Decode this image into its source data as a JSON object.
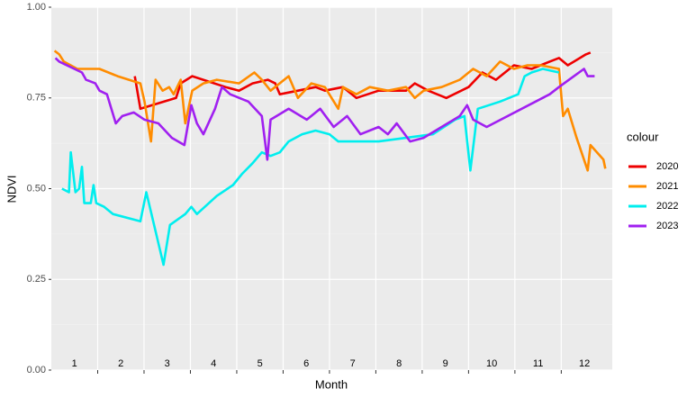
{
  "chart_data": {
    "type": "line",
    "x_label": "Month",
    "y_label": "NDVI",
    "legend_title": "colour",
    "legend_position": "right",
    "grid": true,
    "xlim": [
      0.5,
      12.6
    ],
    "xticks": [
      1,
      2,
      3,
      4,
      5,
      6,
      7,
      8,
      9,
      10,
      11,
      12
    ],
    "ylim": [
      0,
      1
    ],
    "yticks": [
      {
        "value": 0,
        "label": "0.00"
      },
      {
        "value": 0.25,
        "label": "0.25"
      },
      {
        "value": 0.5,
        "label": "0.50"
      },
      {
        "value": 0.75,
        "label": "0.75"
      },
      {
        "value": 1,
        "label": "1.00"
      }
    ],
    "series": [
      {
        "name": "2020",
        "color": "#ee0000",
        "x": [
          2.3,
          2.42,
          3.19,
          3.29,
          3.54,
          4.26,
          4.55,
          4.84,
          5.17,
          5.33,
          5.43,
          5.82,
          6.2,
          6.4,
          6.79,
          7.08,
          7.56,
          8.15,
          8.34,
          8.63,
          9.02,
          9.5,
          9.8,
          10.09,
          10.48,
          10.86,
          11.25,
          11.45,
          11.64,
          12.03,
          12.13
        ],
        "values": [
          0.81,
          0.72,
          0.75,
          0.79,
          0.81,
          0.78,
          0.77,
          0.79,
          0.8,
          0.79,
          0.76,
          0.77,
          0.78,
          0.77,
          0.78,
          0.75,
          0.77,
          0.77,
          0.79,
          0.77,
          0.75,
          0.78,
          0.82,
          0.8,
          0.84,
          0.83,
          0.85,
          0.86,
          0.84,
          0.87,
          0.875
        ]
      },
      {
        "name": "2021",
        "color": "#ff8c00",
        "x": [
          0.57,
          0.67,
          0.77,
          1.06,
          1.54,
          1.93,
          2.42,
          2.51,
          2.65,
          2.75,
          2.9,
          3.04,
          3.14,
          3.29,
          3.39,
          3.54,
          3.78,
          4.07,
          4.55,
          4.88,
          5.04,
          5.23,
          5.62,
          5.82,
          6.11,
          6.4,
          6.69,
          6.79,
          7.08,
          7.37,
          7.76,
          8.15,
          8.34,
          8.53,
          8.92,
          9.31,
          9.6,
          9.89,
          10.18,
          10.48,
          10.77,
          11.06,
          11.45,
          11.54,
          11.64,
          11.83,
          12.07,
          12.13,
          12.41,
          12.45
        ],
        "values": [
          0.88,
          0.87,
          0.85,
          0.83,
          0.83,
          0.81,
          0.79,
          0.74,
          0.63,
          0.8,
          0.77,
          0.78,
          0.76,
          0.8,
          0.68,
          0.77,
          0.79,
          0.8,
          0.79,
          0.82,
          0.8,
          0.77,
          0.81,
          0.75,
          0.79,
          0.78,
          0.72,
          0.78,
          0.76,
          0.78,
          0.77,
          0.78,
          0.75,
          0.77,
          0.78,
          0.8,
          0.83,
          0.81,
          0.85,
          0.83,
          0.84,
          0.84,
          0.83,
          0.7,
          0.72,
          0.64,
          0.55,
          0.62,
          0.58,
          0.555
        ]
      },
      {
        "name": "2022",
        "color": "#00eeee",
        "x": [
          0.73,
          0.88,
          0.92,
          1.02,
          1.1,
          1.16,
          1.21,
          1.35,
          1.41,
          1.47,
          1.64,
          1.83,
          2.42,
          2.55,
          2.81,
          2.92,
          3.06,
          3.39,
          3.52,
          3.64,
          4.07,
          4.42,
          4.61,
          4.84,
          5.04,
          5.23,
          5.43,
          5.62,
          5.91,
          6.2,
          6.5,
          6.69,
          7.08,
          7.56,
          8.15,
          8.73,
          9.21,
          9.41,
          9.54,
          9.7,
          10.18,
          10.57,
          10.71,
          10.86,
          11.1,
          11.45
        ],
        "values": [
          0.5,
          0.49,
          0.6,
          0.49,
          0.5,
          0.56,
          0.46,
          0.46,
          0.51,
          0.46,
          0.45,
          0.43,
          0.41,
          0.49,
          0.35,
          0.29,
          0.4,
          0.43,
          0.45,
          0.43,
          0.48,
          0.51,
          0.54,
          0.57,
          0.6,
          0.59,
          0.6,
          0.63,
          0.65,
          0.66,
          0.65,
          0.63,
          0.63,
          0.63,
          0.64,
          0.65,
          0.69,
          0.7,
          0.55,
          0.72,
          0.74,
          0.76,
          0.81,
          0.82,
          0.83,
          0.82
        ]
      },
      {
        "name": "2023",
        "color": "#a020f0",
        "x": [
          0.59,
          0.67,
          1.16,
          1.25,
          1.45,
          1.54,
          1.7,
          1.89,
          2.03,
          2.28,
          2.51,
          2.81,
          3.1,
          3.37,
          3.52,
          3.64,
          3.78,
          4.03,
          4.18,
          4.36,
          4.75,
          5.04,
          5.16,
          5.23,
          5.62,
          6.01,
          6.3,
          6.59,
          6.88,
          7.17,
          7.56,
          7.76,
          7.95,
          8.24,
          8.53,
          8.92,
          9.31,
          9.47,
          9.6,
          9.89,
          11.25,
          11.45,
          11.99,
          12.07,
          12.22
        ],
        "values": [
          0.86,
          0.85,
          0.82,
          0.8,
          0.79,
          0.77,
          0.76,
          0.68,
          0.7,
          0.71,
          0.69,
          0.68,
          0.64,
          0.62,
          0.73,
          0.68,
          0.65,
          0.72,
          0.78,
          0.76,
          0.74,
          0.7,
          0.58,
          0.69,
          0.72,
          0.69,
          0.72,
          0.67,
          0.7,
          0.65,
          0.67,
          0.65,
          0.68,
          0.63,
          0.64,
          0.67,
          0.7,
          0.73,
          0.69,
          0.67,
          0.76,
          0.78,
          0.83,
          0.81,
          0.81
        ]
      }
    ]
  }
}
